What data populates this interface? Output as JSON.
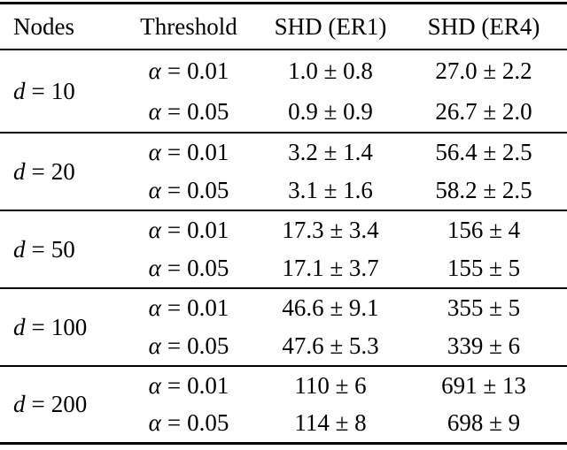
{
  "colors": {
    "text": "#000000",
    "rule": "#000000",
    "background": "#ffffff"
  },
  "table": {
    "headers": [
      {
        "label": "Nodes"
      },
      {
        "label": "Threshold"
      },
      {
        "label": "SHD (ER1)"
      },
      {
        "label": "SHD (ER4)"
      }
    ],
    "groups": [
      {
        "nodes": {
          "symbol": "d",
          "eq": "=",
          "value": "10"
        },
        "rows": [
          {
            "threshold": {
              "symbol": "α",
              "eq": "=",
              "value": "0.01"
            },
            "shd_er1": "1.0 ± 0.8",
            "shd_er4": "27.0 ± 2.2"
          },
          {
            "threshold": {
              "symbol": "α",
              "eq": "=",
              "value": "0.05"
            },
            "shd_er1": "0.9 ± 0.9",
            "shd_er4": "26.7 ± 2.0"
          }
        ]
      },
      {
        "nodes": {
          "symbol": "d",
          "eq": "=",
          "value": "20"
        },
        "rows": [
          {
            "threshold": {
              "symbol": "α",
              "eq": "=",
              "value": "0.01"
            },
            "shd_er1": "3.2 ± 1.4",
            "shd_er4": "56.4 ± 2.5"
          },
          {
            "threshold": {
              "symbol": "α",
              "eq": "=",
              "value": "0.05"
            },
            "shd_er1": "3.1 ± 1.6",
            "shd_er4": "58.2 ± 2.5"
          }
        ]
      },
      {
        "nodes": {
          "symbol": "d",
          "eq": "=",
          "value": "50"
        },
        "rows": [
          {
            "threshold": {
              "symbol": "α",
              "eq": "=",
              "value": "0.01"
            },
            "shd_er1": "17.3 ± 3.4",
            "shd_er4": "156 ± 4"
          },
          {
            "threshold": {
              "symbol": "α",
              "eq": "=",
              "value": "0.05"
            },
            "shd_er1": "17.1 ± 3.7",
            "shd_er4": "155 ± 5"
          }
        ]
      },
      {
        "nodes": {
          "symbol": "d",
          "eq": "=",
          "value": "100"
        },
        "rows": [
          {
            "threshold": {
              "symbol": "α",
              "eq": "=",
              "value": "0.01"
            },
            "shd_er1": "46.6 ± 9.1",
            "shd_er4": "355 ± 5"
          },
          {
            "threshold": {
              "symbol": "α",
              "eq": "=",
              "value": "0.05"
            },
            "shd_er1": "47.6 ± 5.3",
            "shd_er4": "339 ± 6"
          }
        ]
      },
      {
        "nodes": {
          "symbol": "d",
          "eq": "=",
          "value": "200"
        },
        "rows": [
          {
            "threshold": {
              "symbol": "α",
              "eq": "=",
              "value": "0.01"
            },
            "shd_er1": "110 ± 6",
            "shd_er4": "691 ± 13"
          },
          {
            "threshold": {
              "symbol": "α",
              "eq": "=",
              "value": "0.05"
            },
            "shd_er1": "114 ± 8",
            "shd_er4": "698 ± 9"
          }
        ]
      }
    ]
  }
}
